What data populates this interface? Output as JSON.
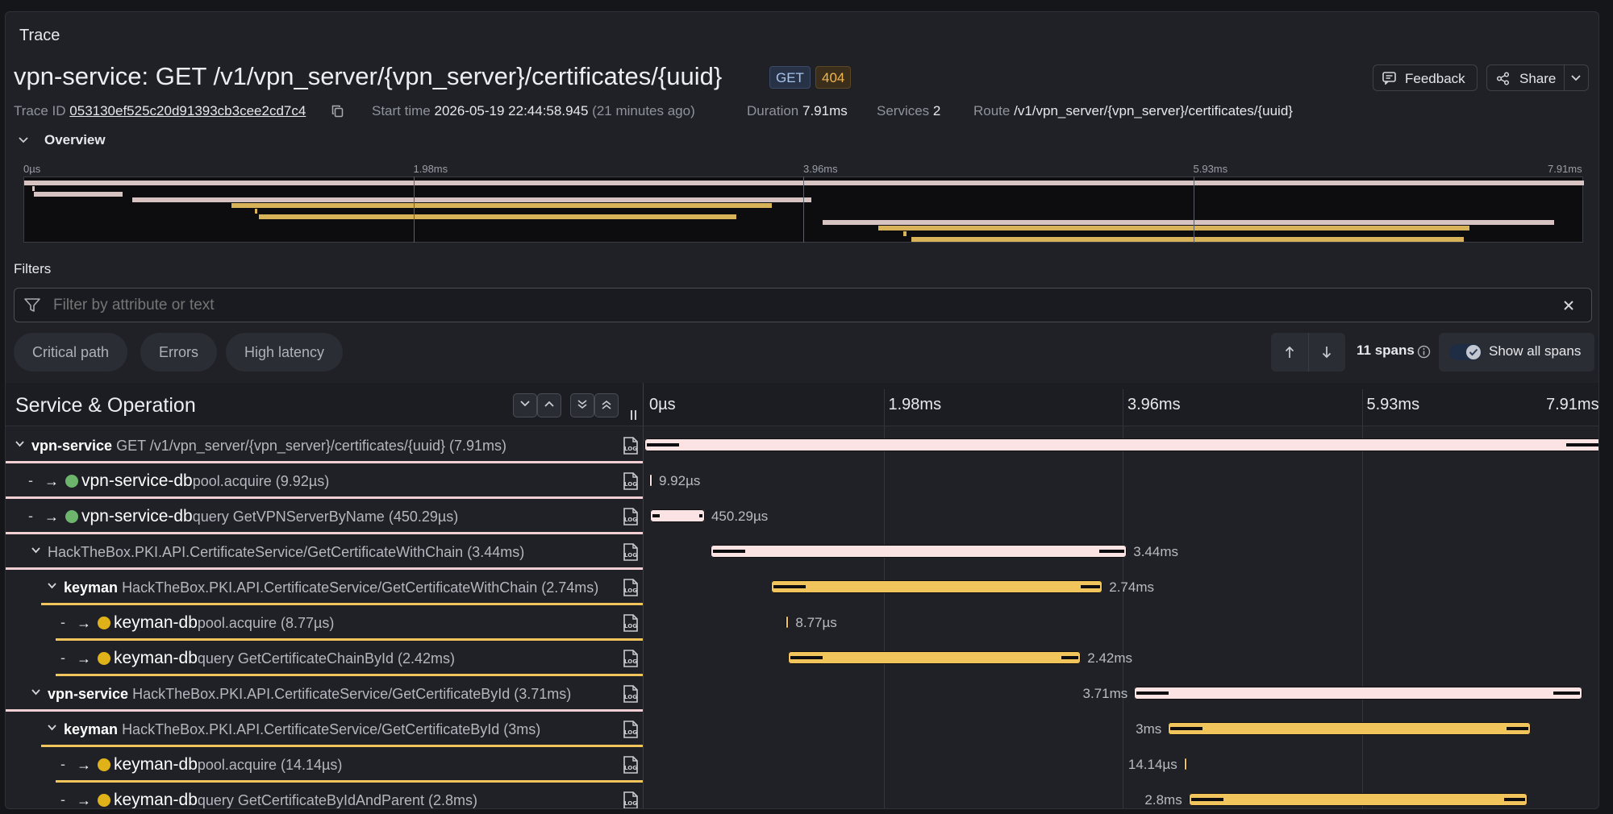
{
  "panel_title": "Trace",
  "trace_title": "vpn-service: GET /v1/vpn_server/{vpn_server}/certificates/{uuid}",
  "method_badge": "GET",
  "status_badge": "404",
  "actions": {
    "feedback": "Feedback",
    "share": "Share"
  },
  "meta": {
    "trace_id_label": "Trace ID",
    "trace_id": "053130ef525c20d91393cb3cee2cd7c4",
    "start_time_label": "Start time",
    "start_time": "2026-05-19 22:44:58.945",
    "start_time_ago": "(21 minutes ago)",
    "duration_label": "Duration",
    "duration": "7.91ms",
    "services_label": "Services",
    "services": "2",
    "route_label": "Route",
    "route": "/v1/vpn_server/{vpn_server}/certificates/{uuid}"
  },
  "overview": {
    "label": "Overview",
    "ticks": [
      "0µs",
      "1.98ms",
      "3.96ms",
      "5.93ms",
      "7.91ms"
    ]
  },
  "filters": {
    "label": "Filters",
    "placeholder": "Filter by attribute or text",
    "chips": [
      "Critical path",
      "Errors",
      "High latency"
    ],
    "span_count": "11 spans",
    "show_all": "Show all spans"
  },
  "table": {
    "header": "Service & Operation",
    "ticks": [
      "0µs",
      "1.98ms",
      "3.96ms",
      "5.93ms",
      "7.91ms"
    ],
    "total_ms": 7.91
  },
  "colors": {
    "vpn": "#fbe3e3",
    "keyman": "#f2c55c",
    "green_dot": "#6db56d",
    "yellow_dot": "#e0b21a",
    "bar_edge": "#0e0e10"
  },
  "spans": [
    {
      "service": "vpn-service",
      "op": "GET /v1/vpn_server/{vpn_server}/certificates/{uuid} (7.91ms)",
      "indent": 0,
      "kind": "root",
      "color": "vpn",
      "start_ms": 0,
      "dur_ms": 7.91,
      "label": ""
    },
    {
      "service": "vpn-service-db",
      "op": "pool.acquire (9.92µs)",
      "indent": 1,
      "kind": "db",
      "color": "vpn",
      "dot": "green_dot",
      "start_ms": 0.04,
      "dur_ms": 0.0099,
      "label": "9.92µs"
    },
    {
      "service": "vpn-service-db",
      "op": "query GetVPNServerByName (450.29µs)",
      "indent": 1,
      "kind": "db",
      "color": "vpn",
      "dot": "green_dot",
      "start_ms": 0.05,
      "dur_ms": 0.45,
      "label": "450.29µs"
    },
    {
      "service": "",
      "op": "HackTheBox.PKI.API.CertificateService/GetCertificateWithChain (3.44ms)",
      "indent": 1,
      "kind": "group",
      "color": "vpn",
      "start_ms": 0.55,
      "dur_ms": 3.44,
      "label": "3.44ms"
    },
    {
      "service": "keyman",
      "op": "HackTheBox.PKI.API.CertificateService/GetCertificateWithChain (2.74ms)",
      "indent": 2,
      "kind": "svc",
      "color": "keyman",
      "start_ms": 1.05,
      "dur_ms": 2.74,
      "label": "2.74ms"
    },
    {
      "service": "keyman-db",
      "op": "pool.acquire (8.77µs)",
      "indent": 3,
      "kind": "db",
      "color": "keyman",
      "dot": "yellow_dot",
      "start_ms": 1.17,
      "dur_ms": 0.0088,
      "label": "8.77µs"
    },
    {
      "service": "keyman-db",
      "op": "query GetCertificateChainById (2.42ms)",
      "indent": 3,
      "kind": "db",
      "color": "keyman",
      "dot": "yellow_dot",
      "start_ms": 1.19,
      "dur_ms": 2.42,
      "label": "2.42ms"
    },
    {
      "service": "vpn-service",
      "op": "HackTheBox.PKI.API.CertificateService/GetCertificateById (3.71ms)",
      "indent": 1,
      "kind": "svc",
      "color": "vpn",
      "start_ms": 4.05,
      "dur_ms": 3.71,
      "label": "3.71ms",
      "label_left": true
    },
    {
      "service": "keyman",
      "op": "HackTheBox.PKI.API.CertificateService/GetCertificateById (3ms)",
      "indent": 2,
      "kind": "svc",
      "color": "keyman",
      "start_ms": 4.33,
      "dur_ms": 3.0,
      "label": "3ms",
      "label_left": true
    },
    {
      "service": "keyman-db",
      "op": "pool.acquire (14.14µs)",
      "indent": 3,
      "kind": "db",
      "color": "keyman",
      "dot": "yellow_dot",
      "start_ms": 4.46,
      "dur_ms": 0.014,
      "label": "14.14µs",
      "label_left": true
    },
    {
      "service": "keyman-db",
      "op": "query GetCertificateByIdAndParent (2.8ms)",
      "indent": 3,
      "kind": "db",
      "color": "keyman",
      "dot": "yellow_dot",
      "start_ms": 4.5,
      "dur_ms": 2.8,
      "label": "2.8ms",
      "label_left": true
    }
  ]
}
